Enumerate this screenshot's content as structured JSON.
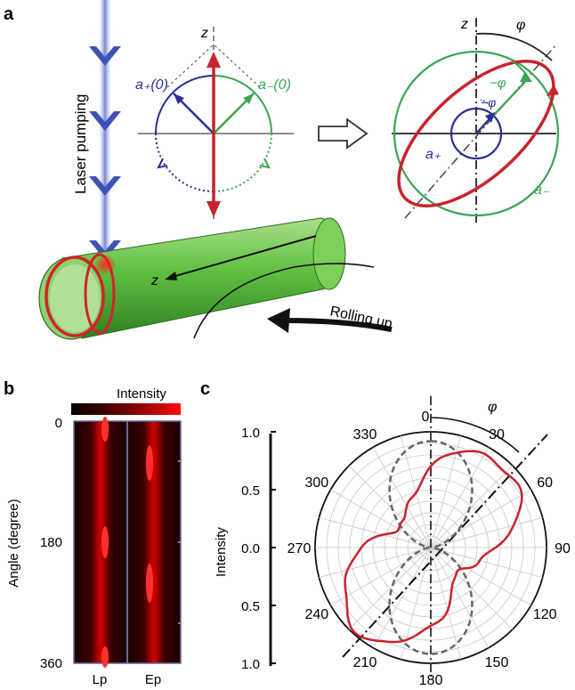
{
  "panel_a": {
    "label": "a",
    "laser_label": "Laser pumping",
    "z_axis_left": "z",
    "z_axis_right": "z",
    "a_plus_zero": "a₊(0)",
    "a_minus_zero": "a₋(0)",
    "phi_top": "φ",
    "minus_phi_green": "−φ",
    "minus_phi_blue": "−φ",
    "a_plus": "a₊",
    "a_minus": "a₋",
    "tube_z": "z",
    "rolling_label": "Rolling up"
  },
  "panel_b": {
    "label": "b",
    "colorbar_label": "Intensity",
    "ylabel": "Angle (degree)",
    "yticks": [
      "0",
      "180",
      "360"
    ],
    "columns": [
      "Lp",
      "Ep"
    ]
  },
  "panel_c": {
    "label": "c",
    "phi": "φ",
    "ylabel": "Intensity"
  },
  "colors": {
    "red": "#c8232c",
    "green": "#3aa651",
    "blue": "#2b2f8f",
    "dashed_gray": "#666666"
  },
  "chart_data": [
    {
      "type": "heatmap",
      "yrange": [
        0,
        360
      ],
      "columns": [
        "Lp",
        "Ep"
      ],
      "peak_angles": {
        "Lp": [
          0,
          180,
          360
        ],
        "Ep": [
          60,
          240
        ]
      }
    },
    {
      "type": "polar",
      "angle_ticks": [
        "0",
        "30",
        "60",
        "90",
        "120",
        "150",
        "180",
        "210",
        "240",
        "270",
        "300",
        "330"
      ],
      "radial_ticks": [
        "1.0",
        "0.5",
        "0.0",
        "0.5",
        "1.0"
      ],
      "rlim": [
        0,
        1.0
      ],
      "series": [
        {
          "style": "solid",
          "color": "red",
          "peak_angle_deg": 40,
          "max": 0.95,
          "min": 0.32
        },
        {
          "style": "dashed",
          "color": "gray",
          "peak_angle_deg": 0,
          "max": 0.92,
          "min": 0.02
        }
      ]
    }
  ]
}
